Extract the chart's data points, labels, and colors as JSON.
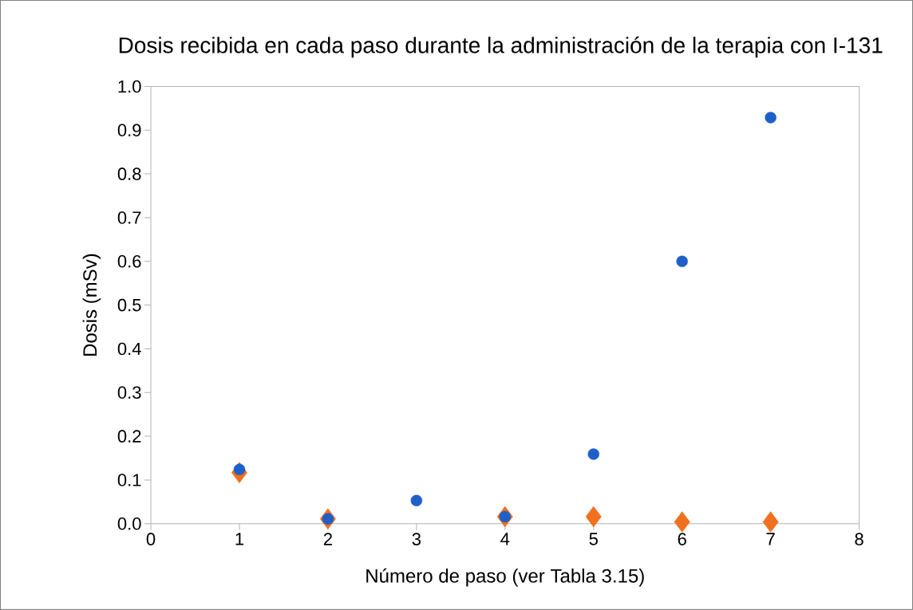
{
  "chart_data": {
    "type": "scatter",
    "title": "Dosis recibida en cada paso durante la administración de la terapia con I-131",
    "xlabel": "Número de paso (ver Tabla 3.15)",
    "ylabel": "Dosis (mSv)",
    "x": [
      1,
      2,
      3,
      4,
      5,
      6,
      7
    ],
    "series": [
      {
        "color": "#f07020",
        "marker": "diamond",
        "values": [
          0.117,
          0.011,
          null,
          0.016,
          0.016,
          0.004,
          0.004
        ]
      },
      {
        "color": "#1f5fc8",
        "marker": "circle",
        "values": [
          0.124,
          0.011,
          0.053,
          0.016,
          0.159,
          0.6,
          0.929
        ]
      }
    ],
    "xlim": [
      0,
      8
    ],
    "xticks": [
      0,
      1,
      2,
      3,
      4,
      5,
      6,
      7,
      8
    ],
    "ylim": [
      0,
      1.0
    ],
    "yticks": [
      {
        "value": 0,
        "label": "0.0"
      },
      {
        "value": 0.1,
        "label": "0.1"
      },
      {
        "value": 0.2,
        "label": "0.2"
      },
      {
        "value": 0.3,
        "label": "0.3"
      },
      {
        "value": 0.4,
        "label": "0.4"
      },
      {
        "value": 0.5,
        "label": "0.5"
      },
      {
        "value": 0.6,
        "label": "0.6"
      },
      {
        "value": 0.7,
        "label": "0.7"
      },
      {
        "value": 0.8,
        "label": "0.8"
      },
      {
        "value": 0.9,
        "label": "0.9"
      },
      {
        "value": 1.0,
        "label": "1.0"
      }
    ],
    "grid": false
  }
}
